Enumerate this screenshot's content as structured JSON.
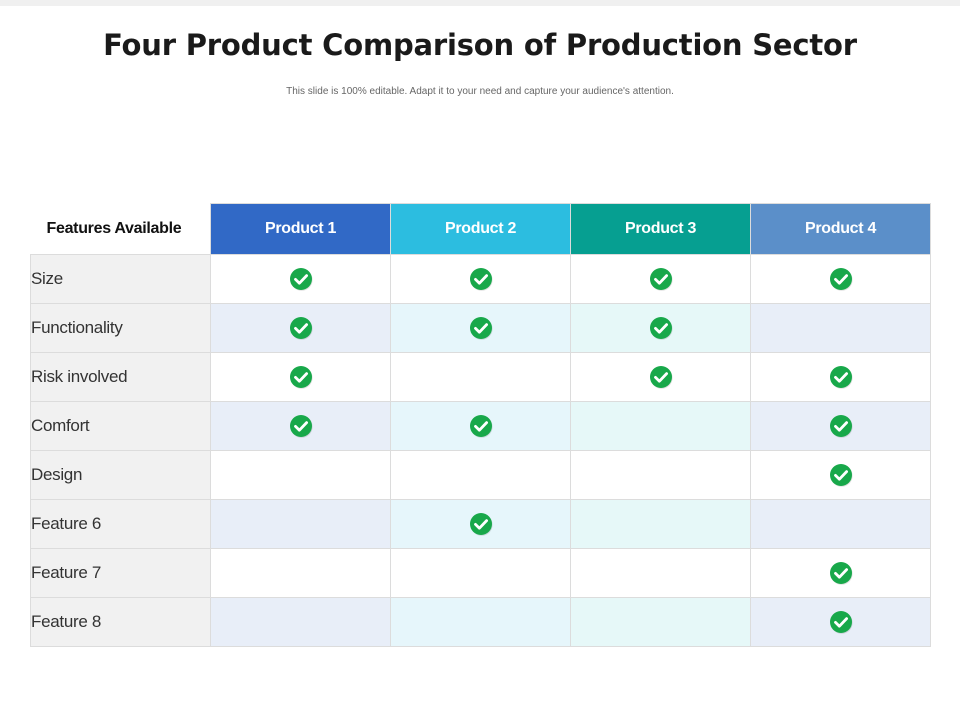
{
  "slide": {
    "title": "Four Product Comparison of Production Sector",
    "subtitle": "This slide is 100% editable. Adapt it to your need and capture your audience's attention."
  },
  "table": {
    "feature_header": "Features Available",
    "products": [
      "Product 1",
      "Product 2",
      "Product 3",
      "Product 4"
    ],
    "rows": [
      {
        "feature": "Size",
        "checks": [
          true,
          true,
          true,
          true
        ]
      },
      {
        "feature": "Functionality",
        "checks": [
          true,
          true,
          true,
          false
        ]
      },
      {
        "feature": "Risk involved",
        "checks": [
          true,
          false,
          true,
          true
        ]
      },
      {
        "feature": "Comfort",
        "checks": [
          true,
          true,
          false,
          true
        ]
      },
      {
        "feature": "Design",
        "checks": [
          false,
          false,
          false,
          true
        ]
      },
      {
        "feature": "Feature 6",
        "checks": [
          false,
          true,
          false,
          false
        ]
      },
      {
        "feature": "Feature 7",
        "checks": [
          false,
          false,
          false,
          true
        ]
      },
      {
        "feature": "Feature 8",
        "checks": [
          false,
          false,
          false,
          true
        ]
      }
    ]
  },
  "icons": {
    "check": "check-circle-icon"
  },
  "colors": {
    "product_1": "#3169c6",
    "product_2": "#2cbde0",
    "product_3": "#069f91",
    "product_4": "#5b8fc9",
    "check": "#18a84a"
  }
}
